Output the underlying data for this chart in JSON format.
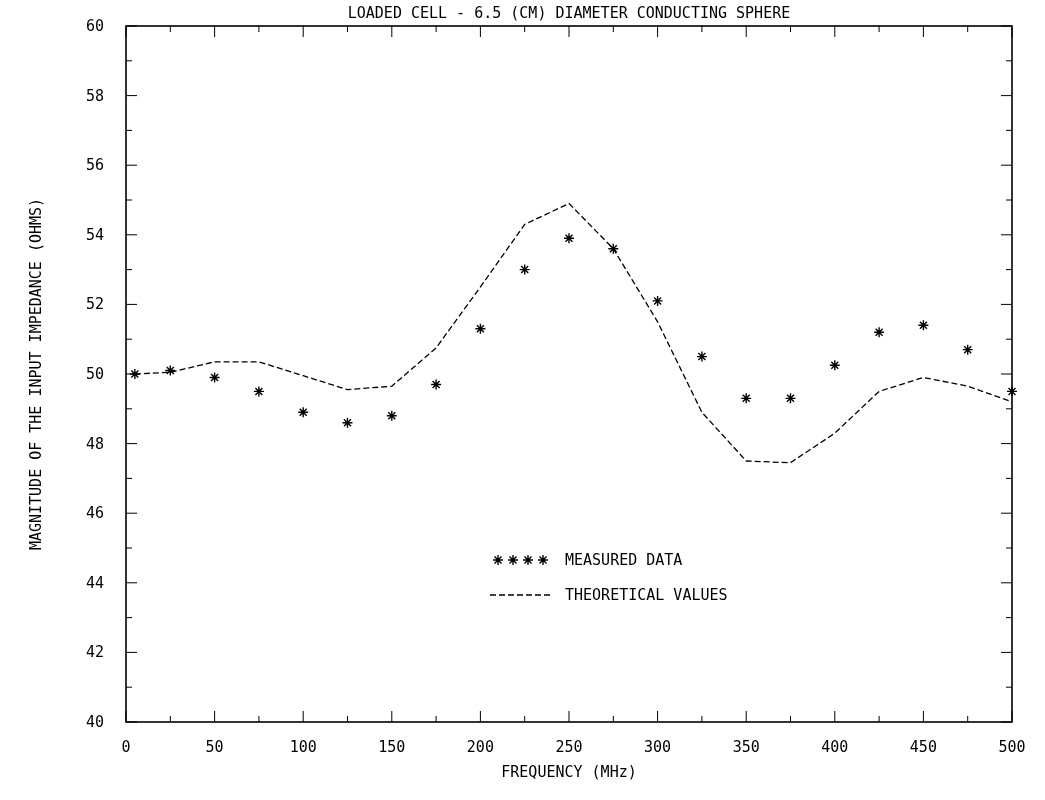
{
  "chart_data": {
    "type": "line",
    "title": "LOADED CELL - 6.5 (CM) DIAMETER CONDUCTING SPHERE",
    "xlabel": "FREQUENCY (MHz)",
    "ylabel": "MAGNITUDE OF THE INPUT IMPEDANCE (OHMS)",
    "x": [
      5,
      25,
      50,
      75,
      100,
      125,
      150,
      175,
      200,
      225,
      250,
      275,
      300,
      325,
      350,
      375,
      400,
      425,
      450,
      475,
      500
    ],
    "series": [
      {
        "name": "MEASURED DATA",
        "type": "scatter",
        "marker": "cross",
        "color": "#000000",
        "values": [
          50.0,
          50.1,
          49.9,
          49.5,
          48.9,
          48.6,
          48.8,
          49.7,
          51.3,
          53.0,
          53.9,
          53.6,
          52.1,
          50.5,
          49.3,
          49.3,
          50.25,
          51.2,
          51.4,
          50.7,
          49.5
        ]
      },
      {
        "name": "THEORETICAL VALUES",
        "line_style": "dashed",
        "color": "#000000",
        "values": [
          50.0,
          50.05,
          50.35,
          50.35,
          49.95,
          49.55,
          49.65,
          50.75,
          52.5,
          54.3,
          54.9,
          53.6,
          51.5,
          48.9,
          47.5,
          47.45,
          48.3,
          49.5,
          49.9,
          49.65,
          49.2
        ]
      }
    ],
    "xlim": [
      0,
      500
    ],
    "xticks": [
      0,
      {
        "value": 25,
        "label": null
      },
      50,
      {
        "value": 75,
        "label": null
      },
      100,
      {
        "value": 125,
        "label": null
      },
      150,
      {
        "value": 175,
        "label": null
      },
      200,
      {
        "value": 225,
        "label": null
      },
      250,
      {
        "value": 275,
        "label": null
      },
      300,
      {
        "value": 325,
        "label": null
      },
      350,
      {
        "value": 375,
        "label": null
      },
      400,
      {
        "value": 425,
        "label": null
      },
      450,
      {
        "value": 475,
        "label": null
      },
      500
    ],
    "ylim": [
      40,
      60
    ],
    "yticks": [
      40,
      {
        "value": 41,
        "label": null
      },
      42,
      {
        "value": 43,
        "label": null
      },
      44,
      {
        "value": 45,
        "label": null
      },
      46,
      {
        "value": 47,
        "label": null
      },
      48,
      {
        "value": 49,
        "label": null
      },
      50,
      {
        "value": 51,
        "label": null
      },
      52,
      {
        "value": 53,
        "label": null
      },
      54,
      {
        "value": 55,
        "label": null
      },
      56,
      {
        "value": 57,
        "label": null
      },
      58,
      {
        "value": 59,
        "label": null
      },
      60
    ],
    "grid": false,
    "legend": "bottom"
  }
}
